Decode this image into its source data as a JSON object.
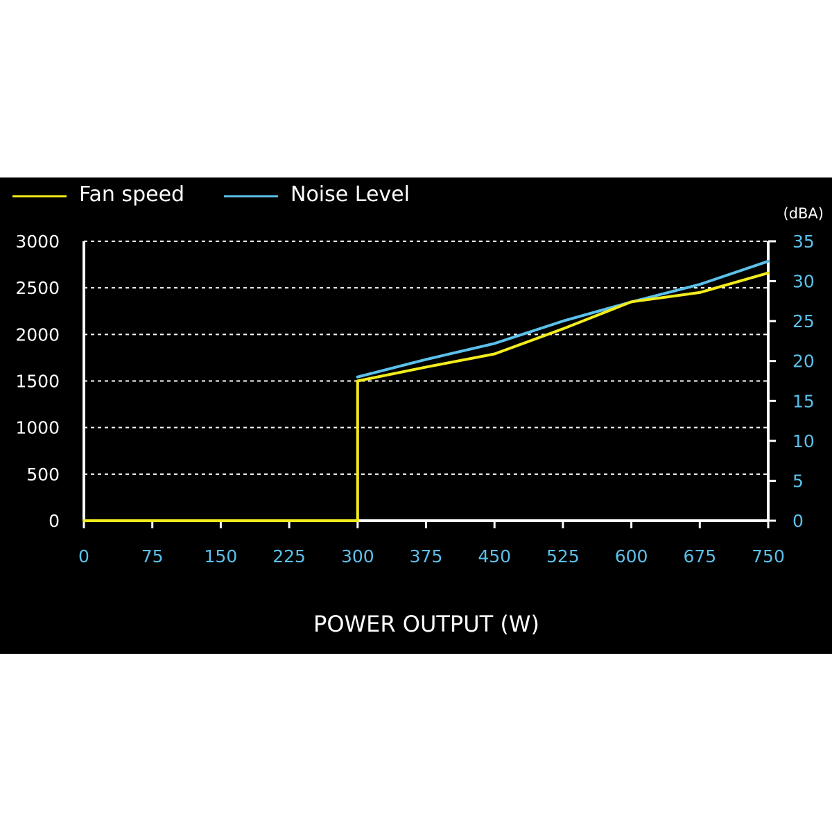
{
  "chart_data": {
    "type": "line",
    "xlabel": "POWER OUTPUT (W)",
    "x": [
      0,
      75,
      150,
      225,
      300,
      375,
      450,
      525,
      600,
      675,
      750
    ],
    "xlim": [
      0,
      750
    ],
    "x_ticks": [
      "0",
      "75",
      "150",
      "225",
      "300",
      "375",
      "450",
      "525",
      "600",
      "675",
      "750"
    ],
    "y_left": {
      "lim": [
        0,
        3000
      ],
      "ticks": [
        "3000",
        "2500",
        "2000",
        "1500",
        "1000",
        "500",
        "0"
      ],
      "tick_values": [
        3000,
        2500,
        2000,
        1500,
        1000,
        500,
        0
      ]
    },
    "y_right": {
      "unit": "(dBA)",
      "lim": [
        0,
        35
      ],
      "ticks": [
        "35",
        "30",
        "25",
        "20",
        "15",
        "10",
        "5",
        "0"
      ],
      "tick_values": [
        35,
        30,
        25,
        20,
        15,
        10,
        5,
        0
      ]
    },
    "grid": "horizontal-dashed",
    "legend_position": "top-left",
    "series": [
      {
        "name": "Fan speed",
        "axis": "left",
        "color": "#f2ec1c",
        "points": [
          [
            0,
            0
          ],
          [
            300,
            0
          ],
          [
            300,
            1500
          ],
          [
            375,
            1650
          ],
          [
            450,
            1790
          ],
          [
            525,
            2060
          ],
          [
            600,
            2350
          ],
          [
            675,
            2450
          ],
          [
            750,
            2660
          ]
        ]
      },
      {
        "name": "Noise Level",
        "axis": "right",
        "color": "#5bc0eb",
        "points": [
          [
            300,
            18.0
          ],
          [
            375,
            20.2
          ],
          [
            450,
            22.2
          ],
          [
            525,
            25.0
          ],
          [
            600,
            27.4
          ],
          [
            675,
            29.6
          ],
          [
            750,
            32.5
          ]
        ]
      }
    ],
    "colors": {
      "background": "#000000",
      "axis": "#ffffff",
      "grid": "#ffffff",
      "tick_right": "#5bc0eb",
      "tick_x": "#5bc0eb"
    }
  }
}
